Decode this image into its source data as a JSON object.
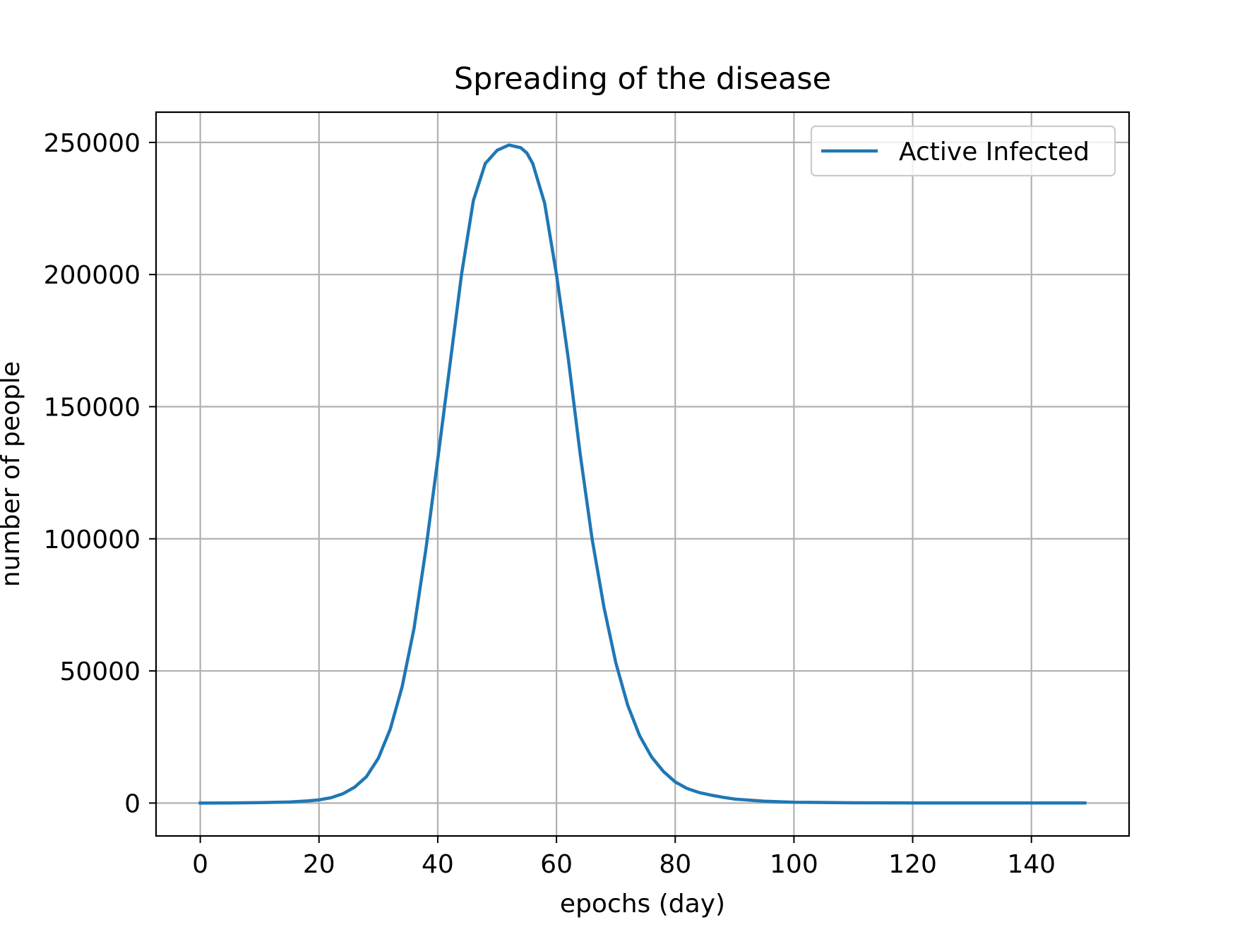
{
  "chart_data": {
    "type": "line",
    "title": "Spreading of the disease",
    "xlabel": "epochs (day)",
    "ylabel": "number of people",
    "xlim": [
      -7.45,
      156.45
    ],
    "ylim": [
      -12450,
      261450
    ],
    "xticks": [
      0,
      20,
      40,
      60,
      80,
      100,
      120,
      140
    ],
    "xtick_labels": [
      "0",
      "20",
      "40",
      "60",
      "80",
      "100",
      "120",
      "140"
    ],
    "yticks": [
      0,
      50000,
      100000,
      150000,
      200000,
      250000
    ],
    "ytick_labels": [
      "0",
      "50000",
      "100000",
      "150000",
      "200000",
      "250000"
    ],
    "grid": true,
    "legend_position": "top-right",
    "series": [
      {
        "name": "Active Infected",
        "color": "#1f77b4",
        "x": [
          0,
          5,
          10,
          15,
          18,
          20,
          22,
          24,
          26,
          28,
          30,
          32,
          34,
          36,
          38,
          40,
          42,
          44,
          46,
          48,
          50,
          52,
          53,
          54,
          55,
          56,
          58,
          60,
          62,
          64,
          66,
          68,
          70,
          72,
          74,
          76,
          78,
          80,
          82,
          84,
          86,
          88,
          90,
          95,
          100,
          110,
          120,
          130,
          140,
          149
        ],
        "y": [
          0,
          50,
          150,
          400,
          800,
          1200,
          2000,
          3500,
          6000,
          10000,
          17000,
          28000,
          44000,
          66000,
          96000,
          130000,
          165000,
          200000,
          228000,
          242000,
          247000,
          249000,
          248500,
          248000,
          246000,
          242000,
          227000,
          200000,
          168000,
          132000,
          100000,
          74000,
          53000,
          37000,
          25500,
          17500,
          12000,
          8000,
          5500,
          4000,
          3000,
          2200,
          1500,
          700,
          300,
          100,
          40,
          20,
          10,
          5
        ]
      }
    ]
  }
}
